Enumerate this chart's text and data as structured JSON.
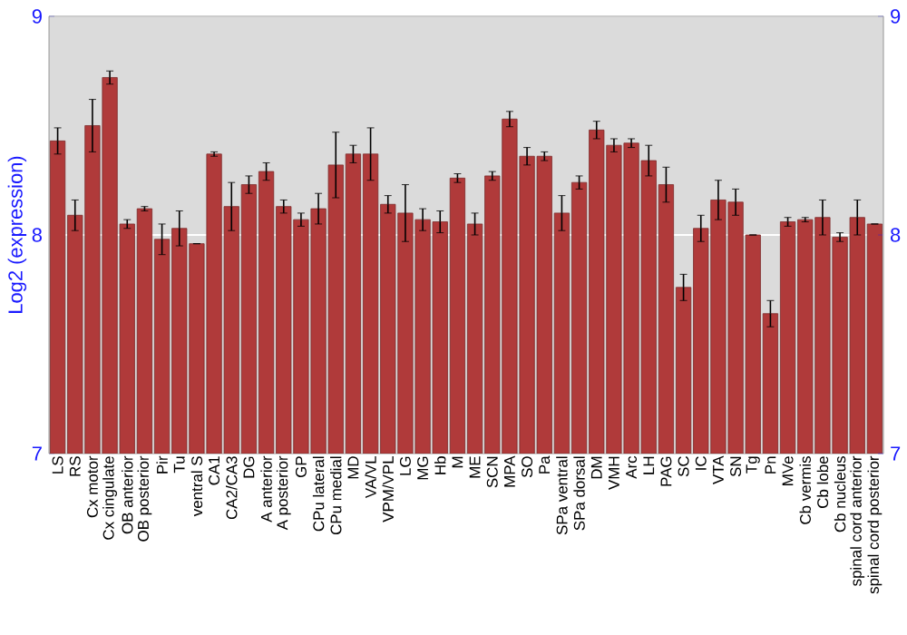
{
  "chart_data": {
    "type": "bar",
    "ylabel": "Log2 (expression)",
    "categories": [
      "LS",
      "RS",
      "Cx motor",
      "Cx cingulate",
      "OB anterior",
      "OB posterior",
      "Pir",
      "Tu",
      "ventral S",
      "CA1",
      "CA2/CA3",
      "DG",
      "A anterior",
      "A posterior",
      "GP",
      "CPu lateral",
      "CPu medial",
      "MD",
      "VA/VL",
      "VPM/VPL",
      "LG",
      "MG",
      "Hb",
      "M",
      "ME",
      "SCN",
      "MPA",
      "SO",
      "Pa",
      "SPa ventral",
      "SPa dorsal",
      "DM",
      "VMH",
      "Arc",
      "LH",
      "PAG",
      "SC",
      "IC",
      "VTA",
      "SN",
      "Tg",
      "Pn",
      "MVe",
      "Cb vermis",
      "Cb lobe",
      "Cb nucleus",
      "spinal cord anterior",
      "spinal cord posterior"
    ],
    "values": [
      8.43,
      8.09,
      8.5,
      8.72,
      8.05,
      8.12,
      7.98,
      8.03,
      7.96,
      8.37,
      8.13,
      8.23,
      8.29,
      8.13,
      8.07,
      8.12,
      8.32,
      8.37,
      8.37,
      8.14,
      8.1,
      8.07,
      8.06,
      8.26,
      8.05,
      8.27,
      8.53,
      8.36,
      8.36,
      8.1,
      8.24,
      8.48,
      8.41,
      8.42,
      8.34,
      8.23,
      7.76,
      8.03,
      8.16,
      8.15,
      8.0,
      7.64,
      8.06,
      8.07,
      8.08,
      7.99,
      8.08,
      8.05
    ],
    "errors": [
      0.06,
      0.07,
      0.12,
      0.03,
      0.02,
      0.01,
      0.07,
      0.08,
      0,
      0.01,
      0.11,
      0.04,
      0.04,
      0.03,
      0.03,
      0.07,
      0.15,
      0.04,
      0.12,
      0.04,
      0.13,
      0.05,
      0.05,
      0.02,
      0.05,
      0.02,
      0.035,
      0.04,
      0.02,
      0.08,
      0.03,
      0.04,
      0.03,
      0.02,
      0.07,
      0.08,
      0.06,
      0.06,
      0.09,
      0.06,
      0,
      0.06,
      0.02,
      0.01,
      0.08,
      0.02,
      0.08,
      0
    ],
    "color": "#b03a3a",
    "ylim": [
      7,
      9
    ],
    "yticks": [
      7,
      8,
      9
    ],
    "y2lim": [
      7,
      9
    ],
    "y2ticks": [
      7,
      8,
      9
    ],
    "grid": "y"
  }
}
